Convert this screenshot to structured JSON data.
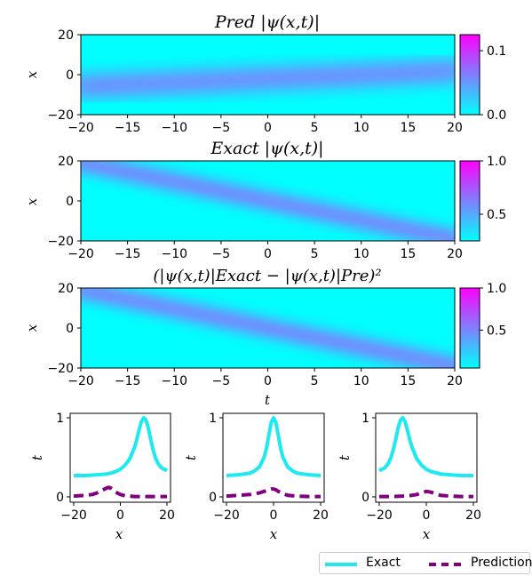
{
  "colors": {
    "cool": "#00ffff",
    "hot": "#ff00ff",
    "exact_line": "#1de9f0",
    "pred_line": "#800080"
  },
  "chart_data": [
    {
      "type": "heatmap",
      "title": "Pred |ψ(x,t)|",
      "xlabel": "",
      "ylabel": "x",
      "xlim": [
        -20,
        20
      ],
      "ylim": [
        -20,
        20
      ],
      "xticks": [
        -20,
        -15,
        -10,
        -5,
        0,
        5,
        10,
        15,
        20
      ],
      "yticks": [
        -20,
        0,
        20
      ],
      "colorbar": {
        "min": 0.0,
        "max": 0.125,
        "ticks": [
          "0.0",
          "0.1"
        ],
        "tick_values": [
          0.0,
          0.1
        ]
      },
      "peak_path": {
        "x_at_t_min": -6,
        "x_at_t_max": 2,
        "peak_value": 0.12
      }
    },
    {
      "type": "heatmap",
      "title": "Exact |ψ(x,t)|",
      "xlabel": "",
      "ylabel": "x",
      "xlim": [
        -20,
        20
      ],
      "ylim": [
        -20,
        20
      ],
      "xticks": [
        -20,
        -15,
        -10,
        -5,
        0,
        5,
        10,
        15,
        20
      ],
      "yticks": [
        -20,
        0,
        20
      ],
      "colorbar": {
        "min": 0.25,
        "max": 1.0,
        "ticks": [
          "0.5",
          "1.0"
        ],
        "tick_values": [
          0.5,
          1.0
        ]
      },
      "peak_path": {
        "x_at_t_min": 20,
        "x_at_t_max": -20,
        "peak_value": 1.0
      }
    },
    {
      "type": "heatmap",
      "title": "(|ψ(x,t)|Exact − |ψ(x,t)|Pre)²",
      "xlabel": "t",
      "ylabel": "x",
      "xlim": [
        -20,
        20
      ],
      "ylim": [
        -20,
        20
      ],
      "xticks": [
        -20,
        -15,
        -10,
        -5,
        0,
        5,
        10,
        15,
        20
      ],
      "yticks": [
        -20,
        0,
        20
      ],
      "colorbar": {
        "min": 0.05,
        "max": 1.0,
        "ticks": [
          "0.5",
          "1.0"
        ],
        "tick_values": [
          0.5,
          1.0
        ]
      },
      "peak_path": {
        "x_at_t_min": 20,
        "x_at_t_max": -20,
        "peak_value": 1.0
      }
    },
    {
      "type": "line",
      "xlabel": "x",
      "ylabel": "t",
      "xlim": [
        -20,
        20
      ],
      "ylim": [
        0,
        1
      ],
      "xticks": [
        -20,
        0,
        20
      ],
      "yticks": [
        0,
        1
      ],
      "series": [
        {
          "name": "Exact",
          "x": [
            -20,
            -15,
            -10,
            -6,
            -4,
            -2,
            0,
            2,
            4,
            6,
            7,
            8,
            9,
            10,
            11,
            12,
            13,
            14,
            15,
            16,
            17,
            18,
            19,
            20
          ],
          "y": [
            0.27,
            0.27,
            0.28,
            0.29,
            0.3,
            0.32,
            0.35,
            0.4,
            0.48,
            0.62,
            0.72,
            0.84,
            0.95,
            1.0,
            0.97,
            0.87,
            0.73,
            0.6,
            0.5,
            0.43,
            0.39,
            0.36,
            0.35,
            0.33
          ]
        },
        {
          "name": "Prediction",
          "x": [
            -20,
            -15,
            -12,
            -10,
            -8,
            -6,
            -5,
            -4,
            -3,
            -2,
            0,
            2,
            4,
            6,
            8,
            10,
            15,
            20
          ],
          "y": [
            0.01,
            0.02,
            0.03,
            0.05,
            0.08,
            0.11,
            0.12,
            0.11,
            0.09,
            0.06,
            0.03,
            0.015,
            0.01,
            0.005,
            0.005,
            0.005,
            0.005,
            0.005
          ]
        }
      ]
    },
    {
      "type": "line",
      "xlabel": "x",
      "ylabel": "t",
      "xlim": [
        -20,
        20
      ],
      "ylim": [
        0,
        1
      ],
      "xticks": [
        -20,
        0,
        20
      ],
      "yticks": [
        0,
        1
      ],
      "series": [
        {
          "name": "Exact",
          "x": [
            -20,
            -15,
            -10,
            -8,
            -6,
            -4,
            -3,
            -2,
            -1,
            0,
            1,
            2,
            3,
            4,
            6,
            8,
            10,
            15,
            20
          ],
          "y": [
            0.27,
            0.28,
            0.3,
            0.33,
            0.38,
            0.5,
            0.62,
            0.78,
            0.94,
            1.0,
            0.94,
            0.78,
            0.62,
            0.5,
            0.38,
            0.33,
            0.3,
            0.28,
            0.27
          ]
        },
        {
          "name": "Prediction",
          "x": [
            -20,
            -15,
            -10,
            -6,
            -4,
            -2,
            -1,
            0,
            1,
            2,
            4,
            6,
            10,
            15,
            20
          ],
          "y": [
            0.01,
            0.02,
            0.03,
            0.05,
            0.07,
            0.09,
            0.1,
            0.1,
            0.09,
            0.07,
            0.04,
            0.02,
            0.01,
            0.005,
            0.005
          ]
        }
      ]
    },
    {
      "type": "line",
      "xlabel": "x",
      "ylabel": "t",
      "xlim": [
        -20,
        20
      ],
      "ylim": [
        0,
        1
      ],
      "xticks": [
        -20,
        0,
        20
      ],
      "yticks": [
        0,
        1
      ],
      "series": [
        {
          "name": "Exact",
          "x": [
            -20,
            -19,
            -18,
            -17,
            -16,
            -15,
            -14,
            -13,
            -12,
            -11,
            -10,
            -9,
            -8,
            -7,
            -6,
            -4,
            -2,
            0,
            2,
            6,
            10,
            15,
            20
          ],
          "y": [
            0.33,
            0.35,
            0.36,
            0.39,
            0.43,
            0.5,
            0.6,
            0.73,
            0.87,
            0.97,
            1.0,
            0.95,
            0.84,
            0.72,
            0.62,
            0.48,
            0.4,
            0.35,
            0.32,
            0.29,
            0.28,
            0.27,
            0.27
          ]
        },
        {
          "name": "Prediction",
          "x": [
            -20,
            -15,
            -10,
            -6,
            -4,
            -2,
            0,
            2,
            4,
            6,
            10,
            15,
            20
          ],
          "y": [
            0.005,
            0.005,
            0.01,
            0.02,
            0.03,
            0.05,
            0.07,
            0.06,
            0.04,
            0.02,
            0.01,
            0.005,
            0.005
          ]
        }
      ]
    }
  ],
  "legend": {
    "items": [
      {
        "label": "Exact"
      },
      {
        "label": "Prediction"
      }
    ]
  }
}
